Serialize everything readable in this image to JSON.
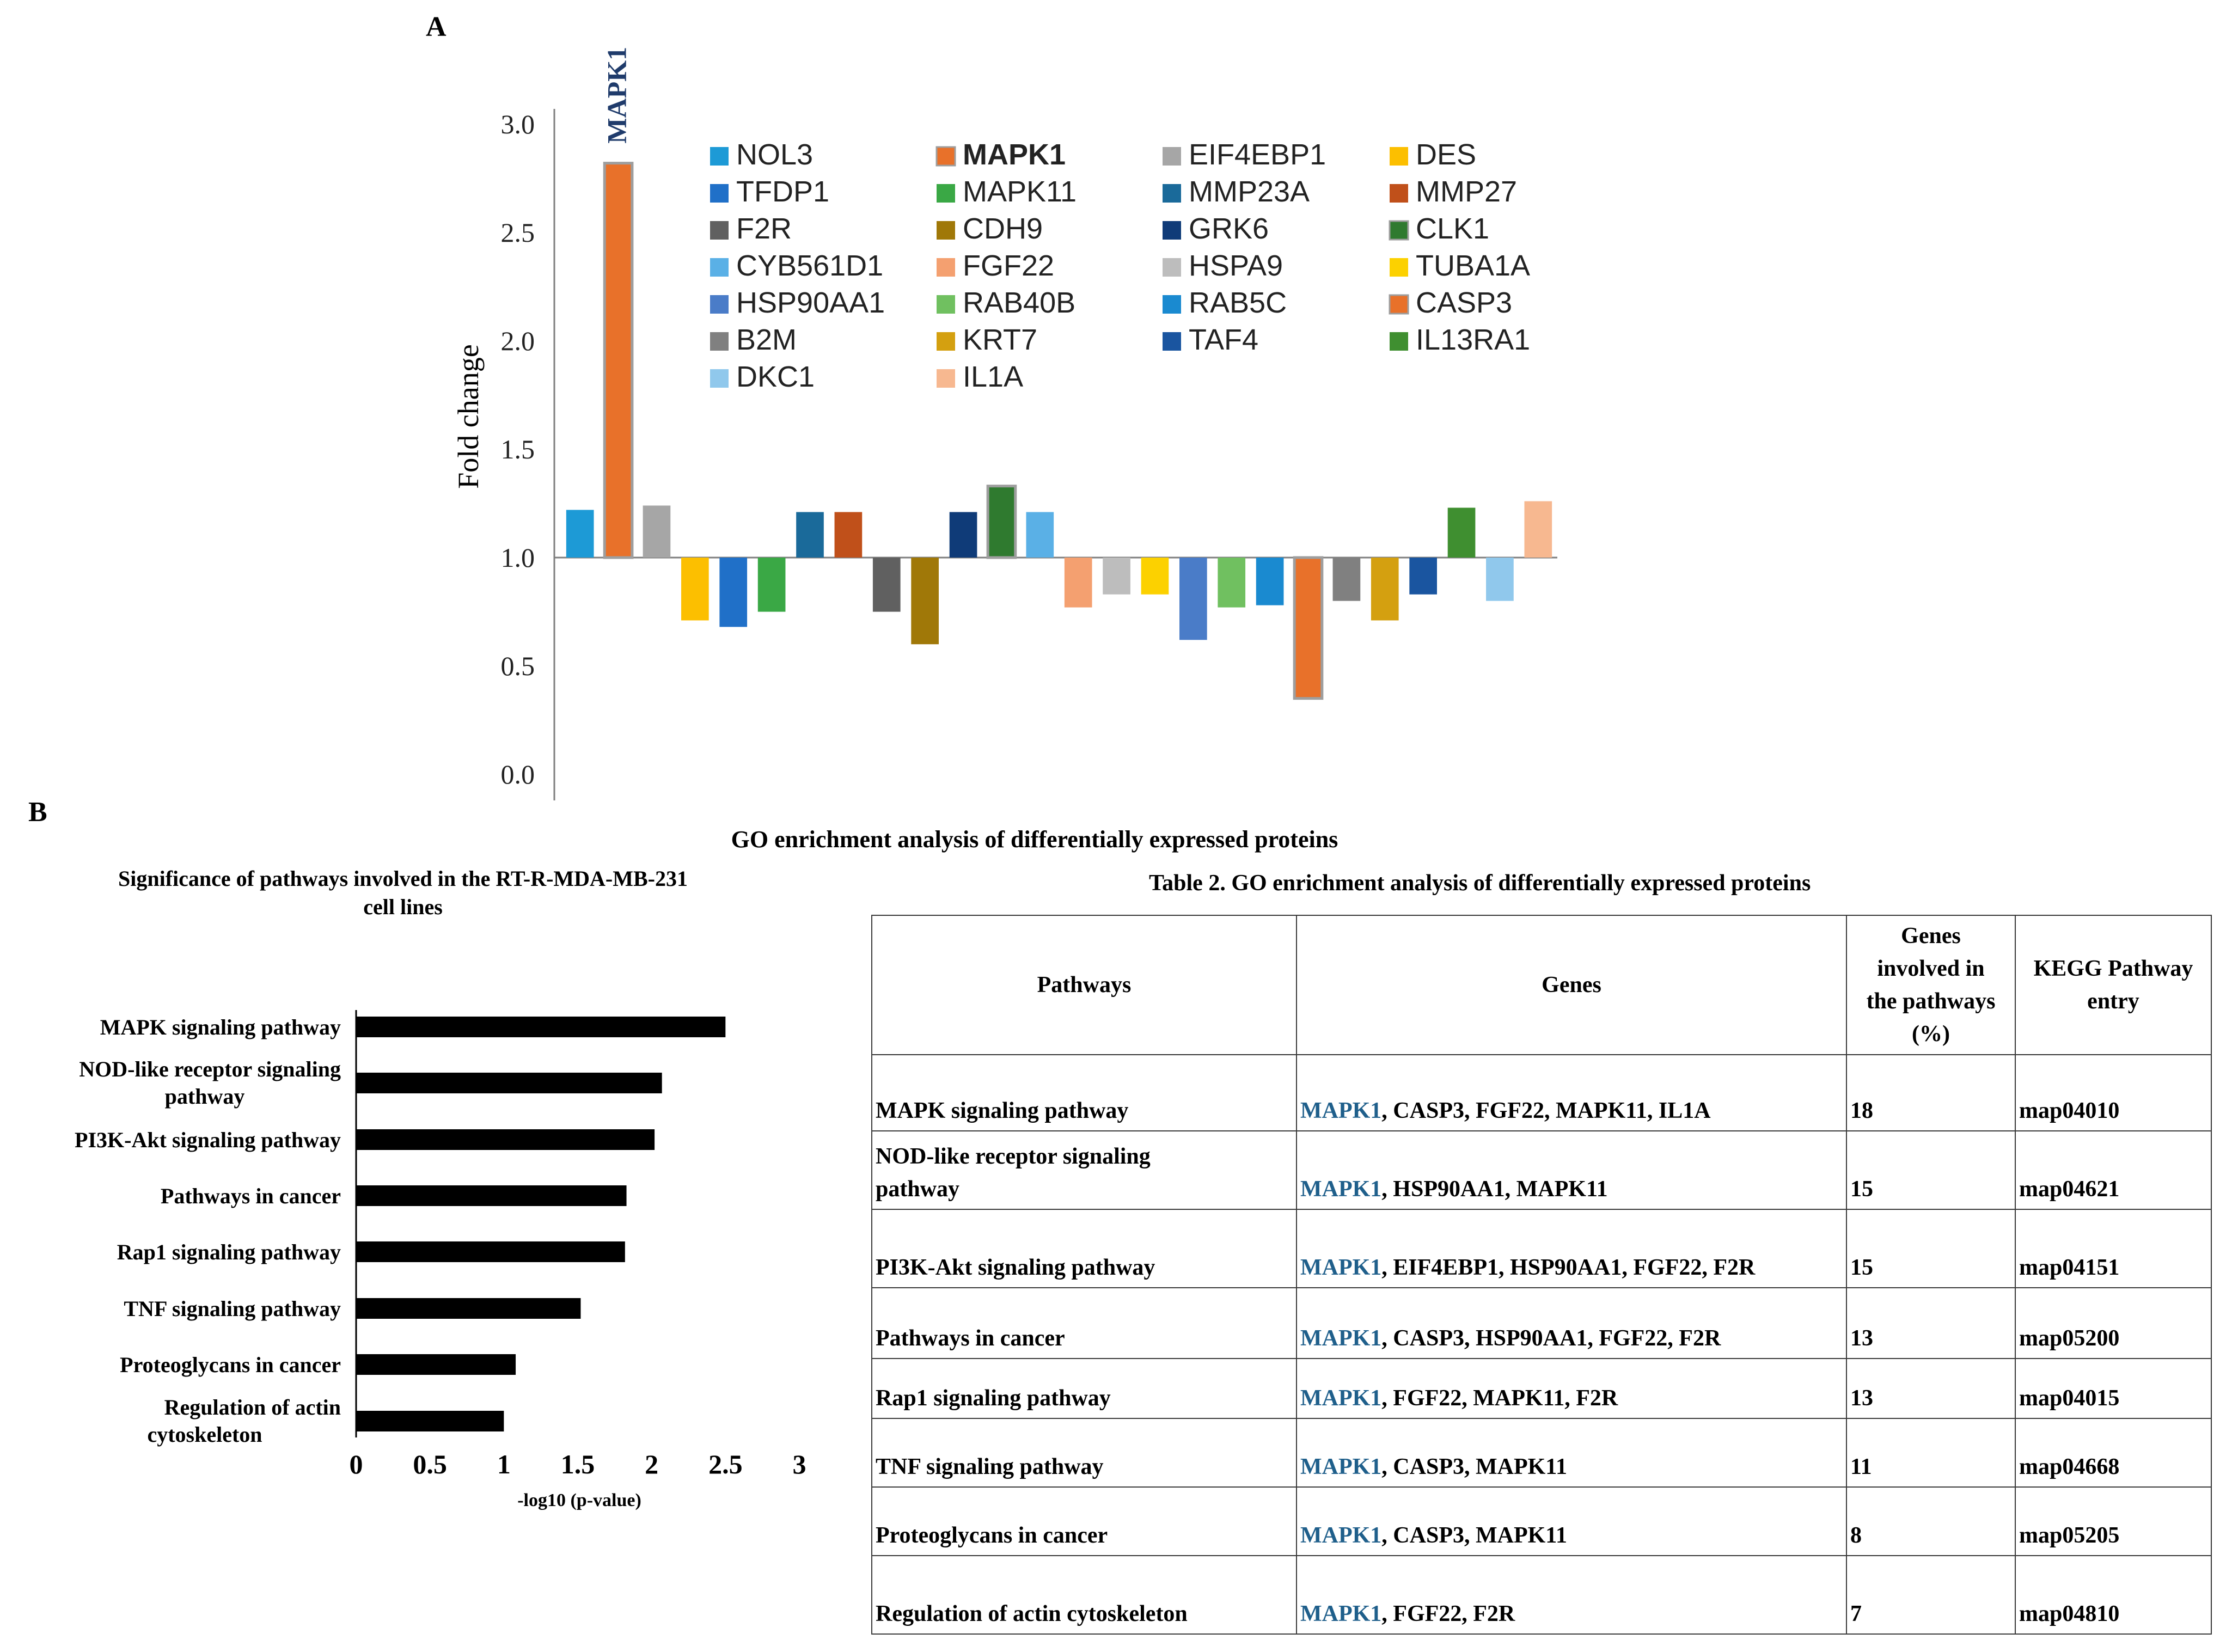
{
  "panelA": {
    "label": "A",
    "chart_data": {
      "type": "bar",
      "ylabel": "Fold change",
      "ylim": [
        0,
        3.0
      ],
      "yticks": [
        "0.0",
        "0.5",
        "1.0",
        "1.5",
        "2.0",
        "2.5",
        "3.0"
      ],
      "baseline": 1.0,
      "highlight_label": "MAPK1",
      "categories": [
        "NOL3",
        "MAPK1",
        "EIF4EBP1",
        "DES",
        "TFDP1",
        "MAPK11",
        "MMP23A",
        "MMP27",
        "F2R",
        "CDH9",
        "GRK6",
        "CLK1",
        "CYB561D1",
        "FGF22",
        "HSPA9",
        "TUBA1A",
        "HSP90AA1",
        "RAB40B",
        "RAB5C",
        "CASP3",
        "B2M",
        "KRT7",
        "TAF4",
        "IL13RA1",
        "DKC1",
        "IL1A"
      ],
      "values": [
        1.22,
        2.82,
        1.24,
        0.71,
        0.68,
        0.75,
        1.21,
        1.21,
        0.75,
        0.6,
        1.21,
        1.33,
        1.21,
        0.77,
        0.83,
        0.83,
        0.62,
        0.77,
        0.78,
        0.35,
        0.8,
        0.71,
        0.83,
        1.23,
        0.8,
        1.26
      ],
      "colors": [
        "#1d9ad6",
        "#e8712a",
        "#a6a6a6",
        "#fcbf00",
        "#2070c8",
        "#3aa845",
        "#1a6a9a",
        "#c0501a",
        "#606060",
        "#a07808",
        "#0f3b78",
        "#2f7a2f",
        "#5ab0e6",
        "#f4a070",
        "#bdbdbd",
        "#fcd100",
        "#4a7cc8",
        "#70c060",
        "#1a8ad0",
        "#e8712a",
        "#808080",
        "#d4a010",
        "#1a55a0",
        "#3f8f30",
        "#90c8ec",
        "#f7b890"
      ],
      "legend": [
        {
          "name": "NOL3",
          "color": "#1d9ad6"
        },
        {
          "name": "MAPK1",
          "color": "#e8712a"
        },
        {
          "name": "EIF4EBP1",
          "color": "#a6a6a6"
        },
        {
          "name": "DES",
          "color": "#fcbf00"
        },
        {
          "name": "TFDP1",
          "color": "#2070c8"
        },
        {
          "name": "MAPK11",
          "color": "#3aa845"
        },
        {
          "name": "MMP23A",
          "color": "#1a6a9a"
        },
        {
          "name": "MMP27",
          "color": "#c0501a"
        },
        {
          "name": "F2R",
          "color": "#606060"
        },
        {
          "name": "CDH9",
          "color": "#a07808"
        },
        {
          "name": "GRK6",
          "color": "#0f3b78"
        },
        {
          "name": "CLK1",
          "color": "#2f7a2f"
        },
        {
          "name": "CYB561D1",
          "color": "#5ab0e6"
        },
        {
          "name": "FGF22",
          "color": "#f4a070"
        },
        {
          "name": "HSPA9",
          "color": "#bdbdbd"
        },
        {
          "name": "TUBA1A",
          "color": "#fcd100"
        },
        {
          "name": "HSP90AA1",
          "color": "#4a7cc8"
        },
        {
          "name": "RAB40B",
          "color": "#70c060"
        },
        {
          "name": "RAB5C",
          "color": "#1a8ad0"
        },
        {
          "name": "CASP3",
          "color": "#e8712a"
        },
        {
          "name": "B2M",
          "color": "#808080"
        },
        {
          "name": "KRT7",
          "color": "#d4a010"
        },
        {
          "name": "TAF4",
          "color": "#1a55a0"
        },
        {
          "name": "IL13RA1",
          "color": "#3f8f30"
        },
        {
          "name": "DKC1",
          "color": "#90c8ec"
        },
        {
          "name": "IL1A",
          "color": "#f7b890"
        }
      ]
    }
  },
  "panelB": {
    "label": "B",
    "title": "GO enrichment analysis of differentially expressed proteins",
    "chart_data": {
      "type": "bar",
      "orientation": "horizontal",
      "title_line1": "Significance of pathways involved in the RT-R-MDA-MB-231",
      "title_line2": "cell lines",
      "xlabel": "-log10 (p-value)",
      "xlim": [
        0,
        3
      ],
      "xticks": [
        "0",
        "0.5",
        "1",
        "1.5",
        "2",
        "2.5",
        "3"
      ],
      "categories": [
        [
          "MAPK signaling pathway"
        ],
        [
          "NOD-like receptor signaling",
          "pathway"
        ],
        [
          "PI3K-Akt signaling pathway"
        ],
        [
          "Pathways in cancer"
        ],
        [
          "Rap1 signaling pathway"
        ],
        [
          "TNF signaling pathway"
        ],
        [
          "Proteoglycans in cancer"
        ],
        [
          "Regulation of actin",
          "cytoskeleton"
        ]
      ],
      "values": [
        2.5,
        2.07,
        2.02,
        1.83,
        1.82,
        1.52,
        1.08,
        1.0
      ],
      "bar_color": "#000000"
    },
    "table": {
      "caption": "Table 2. GO enrichment analysis of differentially expressed proteins",
      "headers": {
        "pathways": "Pathways",
        "genes": "Genes",
        "percent_l1": "Genes",
        "percent_l2": "involved in",
        "percent_l3": "the pathways",
        "percent_l4": "(%)",
        "kegg_l1": "KEGG Pathway",
        "kegg_l2": "entry"
      },
      "rows": [
        {
          "p1": "MAPK signaling pathway",
          "p2": "",
          "hl": "MAPK1",
          "rest": ", CASP3, FGF22, MAPK11, IL1A",
          "pct": "18",
          "kegg": "map04010"
        },
        {
          "p1": "NOD-like receptor signaling",
          "p2": "pathway",
          "hl": "MAPK1",
          "rest": ", HSP90AA1, MAPK11",
          "pct": "15",
          "kegg": "map04621"
        },
        {
          "p1": "PI3K-Akt signaling pathway",
          "p2": "",
          "hl": "MAPK1",
          "rest": ", EIF4EBP1, HSP90AA1, FGF22, F2R",
          "pct": "15",
          "kegg": "map04151"
        },
        {
          "p1": "Pathways in cancer",
          "p2": "",
          "hl": "MAPK1",
          "rest": ", CASP3, HSP90AA1, FGF22, F2R",
          "pct": "13",
          "kegg": "map05200"
        },
        {
          "p1": "Rap1 signaling pathway",
          "p2": "",
          "hl": "MAPK1",
          "rest": ", FGF22, MAPK11, F2R",
          "pct": "13",
          "kegg": "map04015"
        },
        {
          "p1": "TNF signaling pathway",
          "p2": "",
          "hl": "MAPK1",
          "rest": ", CASP3, MAPK11",
          "pct": "11",
          "kegg": "map04668"
        },
        {
          "p1": "Proteoglycans in cancer",
          "p2": "",
          "hl": "MAPK1",
          "rest": ", CASP3, MAPK11",
          "pct": "8",
          "kegg": "map05205"
        },
        {
          "p1": "Regulation of actin cytoskeleton",
          "p2": "",
          "hl": "MAPK1",
          "rest": ", FGF22, F2R",
          "pct": "7",
          "kegg": "map04810"
        }
      ]
    }
  }
}
